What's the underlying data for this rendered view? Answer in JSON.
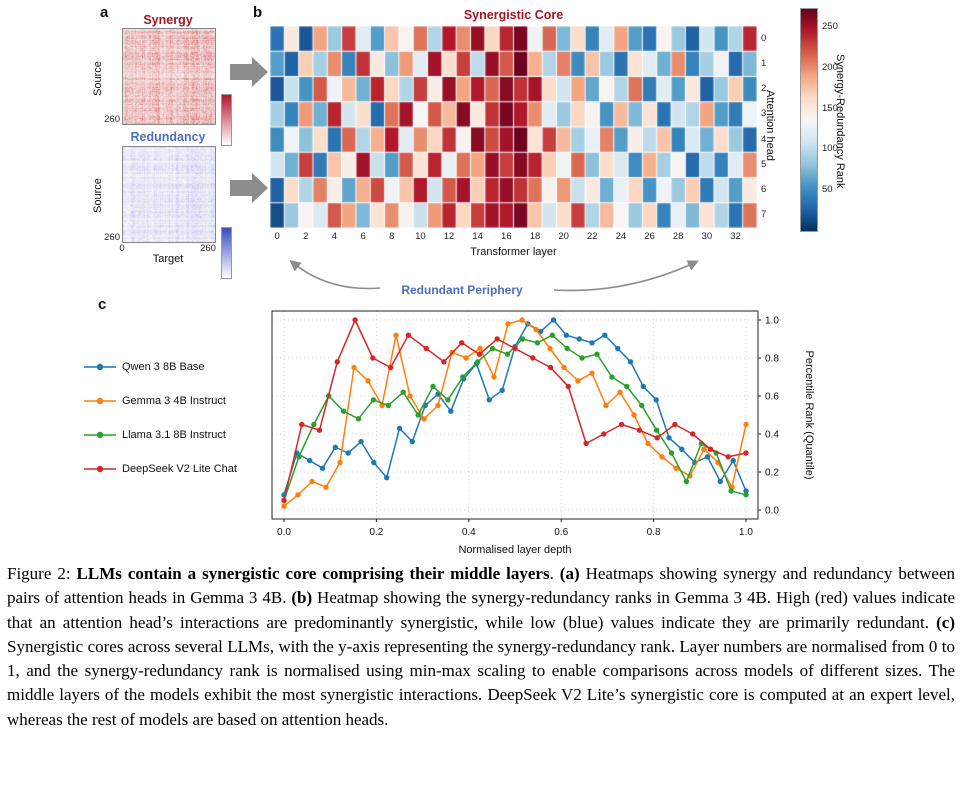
{
  "figure": {
    "panel_a": {
      "label": "a"
    },
    "panel_b": {
      "label": "b",
      "annotation": "Redundant Periphery"
    },
    "panel_c": {
      "label": "c"
    }
  },
  "colors": {
    "synergy_red": "#a31621",
    "redundancy_blue": "#4a6fbe",
    "arrow_gray": "#8c8c8c",
    "synergy_cbar": "#b2182b",
    "redundancy_cbar": "#3b4cc0",
    "heatmap_colormap": "RdBu_r"
  },
  "chart_data": [
    {
      "type": "heatmap",
      "panel": "a",
      "title": "Synergy",
      "xlabel": "Target",
      "ylabel": "Source",
      "x_range": [
        0,
        260
      ],
      "y_range": [
        0,
        260
      ],
      "style": "dense light-red pairwise synergy matrix between attention heads"
    },
    {
      "type": "heatmap",
      "panel": "a",
      "title": "Redundancy",
      "xlabel": "Target",
      "ylabel": "Source",
      "x_range": [
        0,
        260
      ],
      "y_range": [
        0,
        260
      ],
      "style": "dense light-blue pairwise redundancy matrix between attention heads"
    },
    {
      "type": "heatmap",
      "panel": "b",
      "title": "Synergistic Core",
      "xlabel": "Transformer layer",
      "ylabel": "Attention head",
      "n_layers": 34,
      "n_heads": 8,
      "x_ticks": [
        0,
        2,
        4,
        6,
        8,
        10,
        12,
        14,
        16,
        18,
        20,
        22,
        24,
        26,
        28,
        30,
        32
      ],
      "y_ticks": [
        0,
        1,
        2,
        3,
        4,
        5,
        6,
        7
      ],
      "vmin": 0,
      "vmax": 272,
      "colorbar_label": "Synergy-Redundancy Rank",
      "colorbar_ticks": [
        50,
        100,
        150,
        200,
        250
      ],
      "values": [
        [
          35,
          150,
          20,
          190,
          85,
          230,
          120,
          60,
          175,
          140,
          210,
          95,
          245,
          200,
          255,
          165,
          240,
          265,
          130,
          215,
          75,
          160,
          45,
          120,
          190,
          60,
          35,
          140,
          85,
          25,
          110,
          55,
          95,
          240
        ],
        [
          60,
          25,
          170,
          90,
          200,
          45,
          235,
          150,
          80,
          195,
          120,
          250,
          160,
          230,
          100,
          255,
          220,
          270,
          185,
          95,
          205,
          50,
          175,
          85,
          35,
          155,
          120,
          70,
          200,
          45,
          90,
          130,
          30,
          75
        ],
        [
          20,
          105,
          55,
          220,
          130,
          180,
          70,
          240,
          165,
          95,
          230,
          145,
          255,
          190,
          245,
          215,
          260,
          235,
          250,
          160,
          110,
          190,
          65,
          140,
          95,
          210,
          40,
          120,
          60,
          150,
          25,
          85,
          170,
          50
        ],
        [
          90,
          45,
          195,
          70,
          240,
          110,
          160,
          30,
          210,
          250,
          135,
          220,
          180,
          260,
          150,
          235,
          265,
          245,
          200,
          120,
          85,
          165,
          140,
          55,
          180,
          75,
          155,
          35,
          110,
          95,
          190,
          60,
          40,
          130
        ],
        [
          50,
          130,
          80,
          160,
          35,
          215,
          95,
          185,
          245,
          120,
          200,
          165,
          235,
          140,
          260,
          225,
          250,
          270,
          155,
          230,
          180,
          90,
          125,
          205,
          60,
          145,
          100,
          175,
          45,
          115,
          70,
          160,
          85,
          30
        ],
        [
          110,
          70,
          230,
          40,
          175,
          145,
          250,
          105,
          60,
          220,
          155,
          240,
          125,
          210,
          190,
          255,
          230,
          260,
          240,
          170,
          130,
          215,
          80,
          160,
          115,
          50,
          185,
          90,
          140,
          30,
          100,
          45,
          120,
          200
        ],
        [
          25,
          160,
          95,
          205,
          145,
          65,
          185,
          225,
          130,
          175,
          245,
          110,
          220,
          250,
          170,
          240,
          255,
          235,
          210,
          140,
          195,
          105,
          150,
          70,
          125,
          165,
          55,
          130,
          85,
          170,
          40,
          110,
          60,
          150
        ],
        [
          15,
          85,
          140,
          115,
          220,
          190,
          75,
          155,
          200,
          140,
          105,
          195,
          240,
          165,
          230,
          250,
          245,
          265,
          175,
          110,
          160,
          230,
          95,
          180,
          135,
          85,
          165,
          45,
          125,
          75,
          155,
          95,
          35,
          210
        ]
      ]
    },
    {
      "type": "line",
      "panel": "c",
      "xlabel": "Normalised layer depth",
      "ylabel": "Percentile Rank (Quantile)",
      "xlim": [
        0,
        1
      ],
      "ylim": [
        0,
        1
      ],
      "x_ticks": [
        0,
        0.2,
        0.4,
        0.6,
        0.8,
        1.0
      ],
      "y_ticks": [
        0,
        0.2,
        0.4,
        0.6,
        0.8,
        1.0
      ],
      "x_tick_labels": [
        "0.0",
        "0.2",
        "0.4",
        "0.6",
        "0.8",
        "1.0"
      ],
      "y_tick_labels": [
        "0.0",
        "0.2",
        "0.4",
        "0.6",
        "0.8",
        "1.0"
      ],
      "grid": true,
      "legend_position": "outside-left",
      "x_note": "per series, x values are evenly spaced from 0 to 1",
      "series": [
        {
          "name": "Qwen 3 8B Base",
          "color": "#1f77b4",
          "values": [
            0.08,
            0.3,
            0.26,
            0.22,
            0.33,
            0.3,
            0.36,
            0.25,
            0.17,
            0.43,
            0.36,
            0.55,
            0.61,
            0.52,
            0.69,
            0.77,
            0.58,
            0.63,
            0.86,
            0.98,
            0.94,
            1.0,
            0.92,
            0.9,
            0.88,
            0.92,
            0.85,
            0.78,
            0.65,
            0.58,
            0.38,
            0.32,
            0.25,
            0.28,
            0.15,
            0.26,
            0.1
          ]
        },
        {
          "name": "Gemma 3 4B Instruct",
          "color": "#ff7f0e",
          "values": [
            0.02,
            0.08,
            0.15,
            0.12,
            0.25,
            0.75,
            0.68,
            0.55,
            0.92,
            0.6,
            0.48,
            0.55,
            0.83,
            0.8,
            0.85,
            0.7,
            0.98,
            1.0,
            0.95,
            0.85,
            0.75,
            0.68,
            0.72,
            0.55,
            0.62,
            0.5,
            0.35,
            0.28,
            0.22,
            0.18,
            0.32,
            0.25,
            0.12,
            0.45
          ]
        },
        {
          "name": "Llama 3.1 8B Instruct",
          "color": "#2ca02c",
          "values": [
            0.05,
            0.28,
            0.45,
            0.6,
            0.52,
            0.48,
            0.58,
            0.55,
            0.62,
            0.5,
            0.65,
            0.58,
            0.7,
            0.78,
            0.85,
            0.82,
            0.9,
            0.88,
            0.92,
            0.85,
            0.8,
            0.82,
            0.7,
            0.65,
            0.55,
            0.42,
            0.3,
            0.15,
            0.35,
            0.3,
            0.1,
            0.08
          ]
        },
        {
          "name": "DeepSeek V2 Lite Chat",
          "color": "#d62728",
          "values": [
            0.05,
            0.45,
            0.42,
            0.78,
            1.0,
            0.8,
            0.75,
            0.92,
            0.85,
            0.78,
            0.88,
            0.82,
            0.9,
            0.85,
            0.8,
            0.75,
            0.65,
            0.35,
            0.4,
            0.45,
            0.42,
            0.38,
            0.45,
            0.4,
            0.32,
            0.28,
            0.3
          ]
        }
      ]
    }
  ],
  "caption": {
    "segments": [
      {
        "text": "Figure 2: ",
        "bold": false
      },
      {
        "text": "LLMs contain a synergistic core comprising their middle layers",
        "bold": true
      },
      {
        "text": ". ",
        "bold": false
      },
      {
        "text": "(a)",
        "bold": true
      },
      {
        "text": " Heatmaps showing synergy and redundancy between pairs of attention heads in Gemma 3 4B. ",
        "bold": false
      },
      {
        "text": "(b)",
        "bold": true
      },
      {
        "text": " Heatmap showing the synergy-redundancy ranks in Gemma 3 4B. High (red) values indicate that an attention head’s interactions are predominantly synergistic, while low (blue) values indicate they are primarily redundant. ",
        "bold": false
      },
      {
        "text": "(c)",
        "bold": true
      },
      {
        "text": " Synergistic cores across several LLMs, with the y-axis representing the synergy-redundancy rank. Layer numbers are normalised from 0 to 1, and the synergy-redundancy rank is normalised using min-max scaling to enable comparisons across models of different sizes. The middle layers of the models exhibit the most synergistic interactions. DeepSeek V2 Lite’s synergistic core is computed at an expert level, whereas the rest of models are based on attention heads.",
        "bold": false
      }
    ]
  }
}
